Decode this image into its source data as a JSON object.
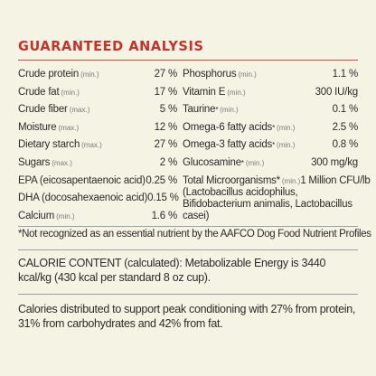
{
  "heading": "GUARANTEED ANALYSIS",
  "left_column": [
    {
      "name": "Crude protein",
      "qualifier": "(min.)",
      "value": "27 %"
    },
    {
      "name": "Crude fat",
      "qualifier": "(min.)",
      "value": "17 %"
    },
    {
      "name": "Crude fiber",
      "qualifier": "(max.)",
      "value": "5 %"
    },
    {
      "name": "Moisture",
      "qualifier": "(max.)",
      "value": "12 %"
    },
    {
      "name": "Dietary starch",
      "qualifier": "(max.)",
      "value": "27 %"
    },
    {
      "name": "Sugars",
      "qualifier": "(max.)",
      "value": "2 %"
    },
    {
      "name": "EPA (eicosapentaenoic acid)",
      "qualifier": "",
      "value": "0.25 %"
    },
    {
      "name": "DHA (docosahexaenoic acid)",
      "qualifier": "",
      "value": "0.15 %"
    },
    {
      "name": "Calcium",
      "qualifier": "(min.)",
      "value": "1.6 %"
    }
  ],
  "right_column": [
    {
      "name": "Phosphorus",
      "star": "",
      "qualifier": "(min.)",
      "value": "1.1 %"
    },
    {
      "name": "Vitamin E",
      "star": "",
      "qualifier": "(min.)",
      "value": "300 IU/kg"
    },
    {
      "name": "Taurine",
      "star": "*",
      "qualifier": "(min.)",
      "value": "0.1 %"
    },
    {
      "name": "Omega-6 fatty acids",
      "star": "*",
      "qualifier": "(min.)",
      "value": "2.5 %"
    },
    {
      "name": "Omega-3 fatty acids",
      "star": "*",
      "qualifier": "(min.)",
      "value": "0.8 %"
    },
    {
      "name": "Glucosamine",
      "star": "*",
      "qualifier": "(min.)",
      "value": "300 mg/kg"
    }
  ],
  "microorganisms": {
    "name": "Total Microorganisms",
    "star": "*",
    "qualifier": "(min.)",
    "value": "1 Million CFU/lb",
    "strains": "(Lactobacillus acidophilus, Bifidobacterium animalis, Lactobacillus casei)"
  },
  "footnote": "*Not recognized as an essential nutrient by the AAFCO Dog Food Nutrient Profiles",
  "calorie_content": "CALORIE CONTENT (calculated): Metabolizable Energy is 3440 kcal/kg (430 kcal per standard 8 oz cup).",
  "calories_distributed": "Calories distributed to support peak conditioning with 27% from protein, 31% from carbohydrates and 42% from fat.",
  "colors": {
    "background": "#f5f3e4",
    "heading": "#c8312b",
    "text": "#2b2b2b",
    "qualifier": "#7a7a7a",
    "rule": "#9aa2a8"
  }
}
